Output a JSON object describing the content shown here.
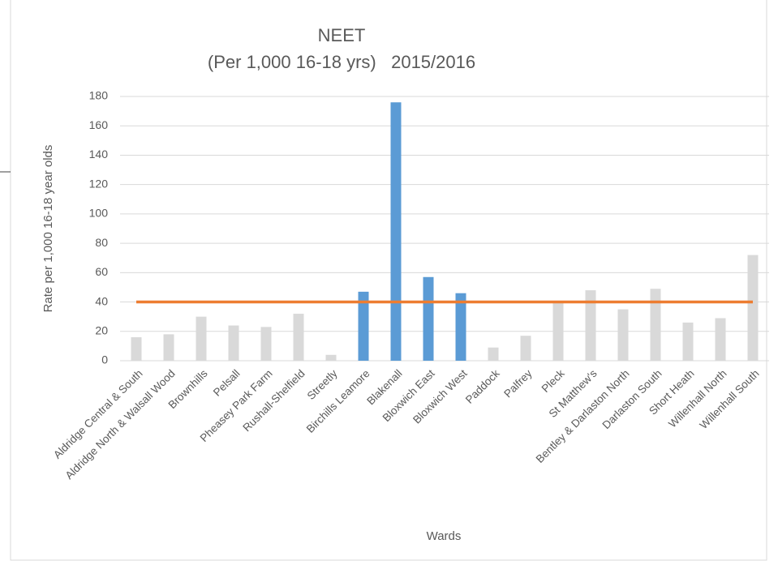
{
  "chart_data": {
    "type": "bar",
    "title": "NEET",
    "subtitle": "(Per 1,000 16-18 yrs)   2015/2016",
    "x_label": "Wards",
    "y_label": "Rate per 1,000 16-18 year olds",
    "categories": [
      "Aldridge Central & South",
      "Aldridge North & Walsall Wood",
      "Brownhills",
      "Pelsall",
      "Pheasey Park Farm",
      "Rushall-Shelfield",
      "Streetly",
      "Birchills Leamore",
      "Blakenall",
      "Bloxwich East",
      "Bloxwich West",
      "Paddock",
      "Palfrey",
      "Pleck",
      "St Matthew's",
      "Bentley & Darlaston North",
      "Darlaston South",
      "Short Heath",
      "Willenhall North",
      "Willenhall South"
    ],
    "series": [
      {
        "type": "bar",
        "values": [
          16,
          18,
          30,
          24,
          23,
          32,
          4,
          47,
          176,
          57,
          46,
          9,
          17,
          40,
          48,
          35,
          49,
          26,
          29,
          72
        ],
        "colors": [
          "#d9d9d9",
          "#d9d9d9",
          "#d9d9d9",
          "#d9d9d9",
          "#d9d9d9",
          "#d9d9d9",
          "#d9d9d9",
          "#5b9bd5",
          "#5b9bd5",
          "#5b9bd5",
          "#5b9bd5",
          "#d9d9d9",
          "#d9d9d9",
          "#d9d9d9",
          "#d9d9d9",
          "#d9d9d9",
          "#d9d9d9",
          "#d9d9d9",
          "#d9d9d9",
          "#d9d9d9"
        ]
      },
      {
        "type": "line",
        "color": "#ed7d31",
        "values": [
          40,
          40,
          40,
          40,
          40,
          40,
          40,
          40,
          40,
          40,
          40,
          40,
          40,
          40,
          40,
          40,
          40,
          40,
          40,
          40
        ]
      }
    ],
    "ylim": [
      0,
      180
    ],
    "yticks": [
      0,
      20,
      40,
      60,
      80,
      100,
      120,
      140,
      160,
      180
    ],
    "grid": true
  }
}
